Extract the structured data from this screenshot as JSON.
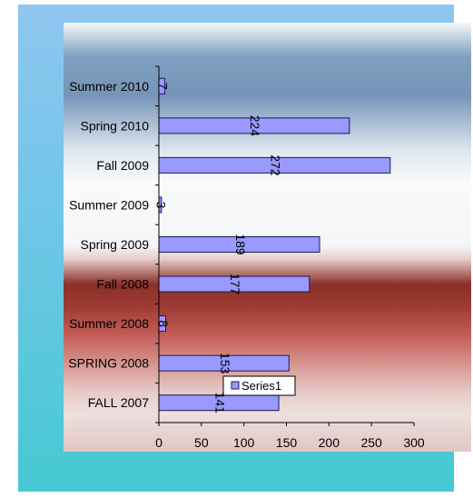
{
  "chart_data": {
    "type": "bar",
    "orientation": "horizontal",
    "categories": [
      "FALL 2007",
      "SPRING 2008",
      "Summer 2008",
      "Fall 2008",
      "Spring 2009",
      "Summer 2009",
      "Fall 2009",
      "Spring 2010",
      "Summer 2010"
    ],
    "series": [
      {
        "name": "Series1",
        "values": [
          141,
          153,
          8,
          177,
          189,
          3,
          272,
          224,
          7
        ]
      }
    ],
    "xlim": [
      0,
      300
    ],
    "xticks": [
      0,
      50,
      100,
      150,
      200,
      250,
      300
    ],
    "grid": false,
    "legend": "bottom-center",
    "colors": {
      "bar_fill": "#9999ff",
      "bar_stroke": "#1a1a55",
      "axis": "#000000"
    }
  }
}
